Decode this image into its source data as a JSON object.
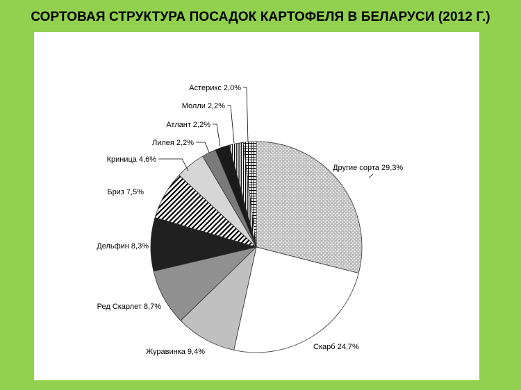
{
  "page": {
    "title": "СОРТОВАЯ СТРУКТУРА ПОСАДОК КАРТОФЕЛЯ В БЕЛАРУСИ (2012 Г.)",
    "background_color": "#92d050",
    "panel_color": "#ffffff"
  },
  "chart_data": {
    "type": "pie",
    "title": "СОРТОВАЯ СТРУКТУРА ПОСАДОК КАРТОФЕЛЯ В БЕЛАРУСИ (2012 Г.)",
    "start_angle_deg": 0,
    "direction": "clockwise",
    "slices": [
      {
        "label": "Другие сорта 29,3%",
        "category": "Другие сорта",
        "value": 29.3,
        "pattern": "dots"
      },
      {
        "label": "Скарб 24,7%",
        "category": "Скарб",
        "value": 24.7,
        "pattern": "white"
      },
      {
        "label": "Журавинка 9,4%",
        "category": "Журавинка",
        "value": 9.4,
        "pattern": "lightgray"
      },
      {
        "label": "Ред Скарлет 8,7%",
        "category": "Ред Скарлет",
        "value": 8.7,
        "pattern": "gray"
      },
      {
        "label": "Дельфин 8,3%",
        "category": "Дельфин",
        "value": 8.3,
        "pattern": "black"
      },
      {
        "label": "Бриз 7,5%",
        "category": "Бриз",
        "value": 7.5,
        "pattern": "diagonal"
      },
      {
        "label": "Криница 4,6%",
        "category": "Криница",
        "value": 4.6,
        "pattern": "lightgray2"
      },
      {
        "label": "Лилея 2,2%",
        "category": "Лилея",
        "value": 2.2,
        "pattern": "darkgray"
      },
      {
        "label": "Атлант 2,2%",
        "category": "Атлант",
        "value": 2.2,
        "pattern": "black2"
      },
      {
        "label": "Молли 2,2%",
        "category": "Молли",
        "value": 2.2,
        "pattern": "vertical"
      },
      {
        "label": "Астерикс 2,0%",
        "category": "Астерикс",
        "value": 2.0,
        "pattern": "grid"
      }
    ],
    "legend": "none",
    "data_labels": "outside-with-leader-lines"
  }
}
